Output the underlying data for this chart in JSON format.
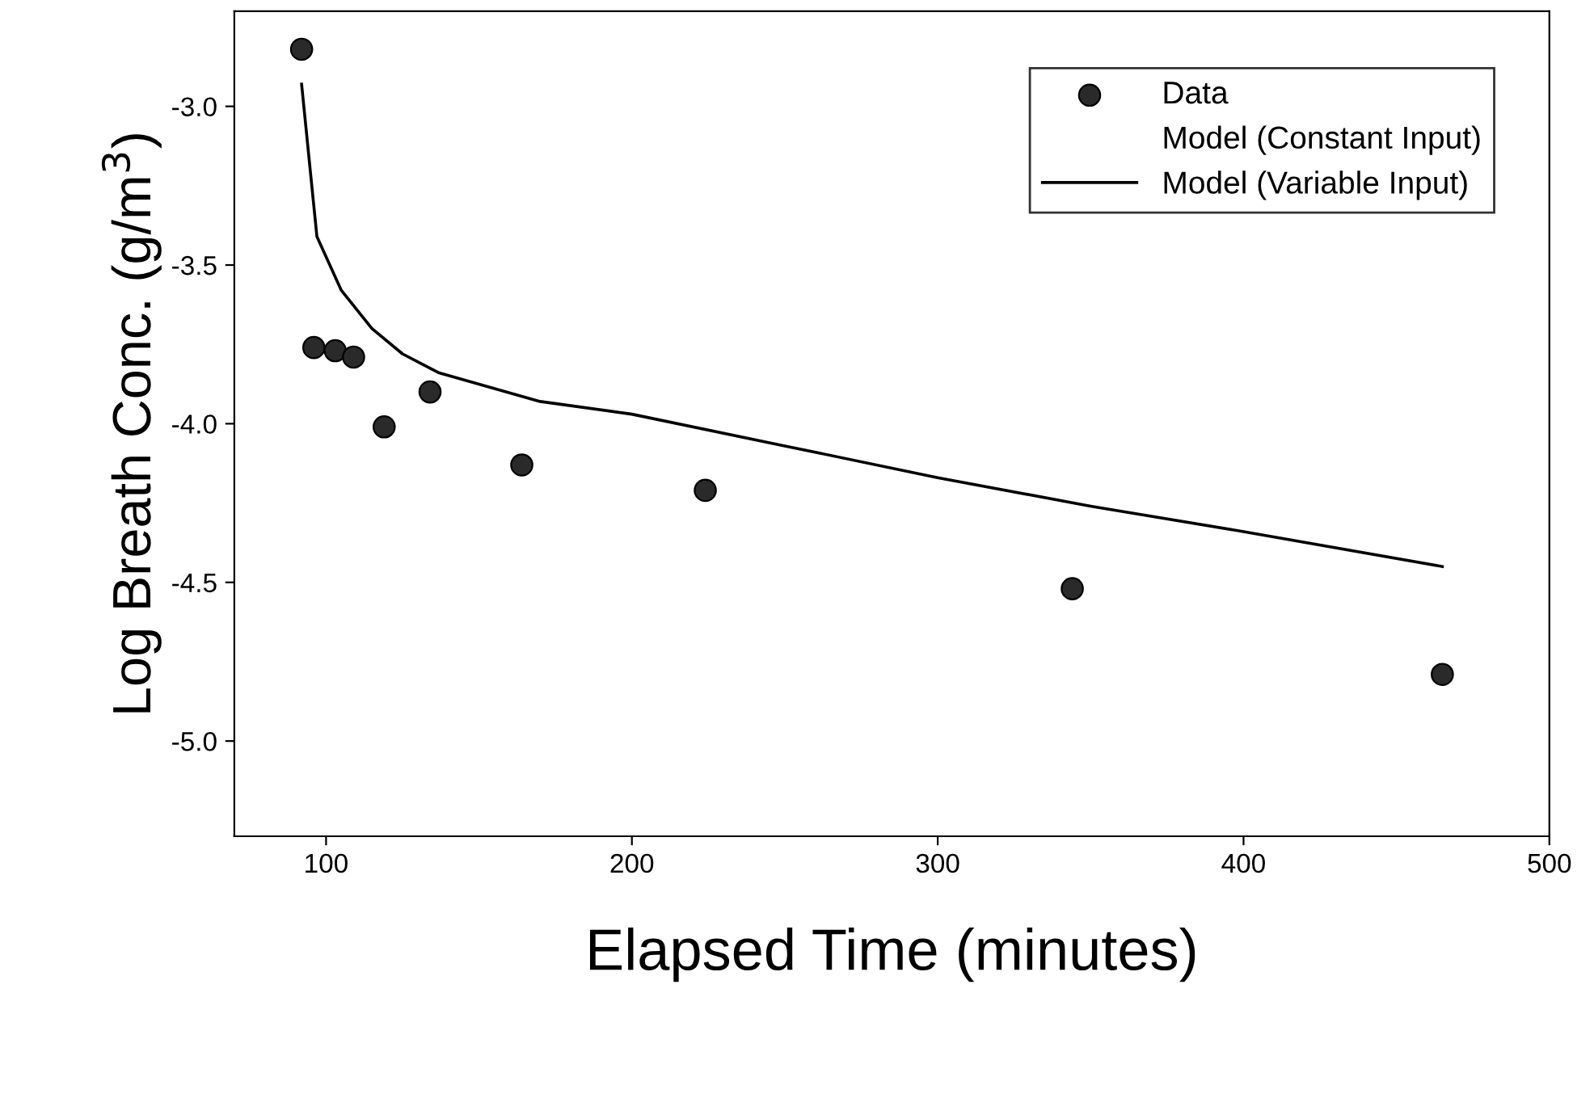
{
  "chart_data": {
    "type": "scatter",
    "xlabel": "Elapsed Time (minutes)",
    "ylabel": "Log Breath Conc. (g/m$^{3}$)",
    "xlim": [
      70,
      500
    ],
    "xticks": [
      100,
      200,
      300,
      400,
      500
    ],
    "ylim": [
      -5.3,
      -2.7
    ],
    "yticks": [
      {
        "value": -5,
        "label": "-5.0"
      },
      -4.5,
      {
        "value": -4,
        "label": "-4.0"
      },
      -3.5,
      {
        "value": -3,
        "label": "-3.0"
      }
    ],
    "grid": false,
    "legend": "top right",
    "series": [
      {
        "name": "Data",
        "marker": "circle",
        "color": "#2a2a2a",
        "x": [
          92,
          96,
          103,
          109,
          119,
          134,
          164,
          224,
          344,
          465
        ],
        "values": [
          -2.82,
          -3.76,
          -3.77,
          -3.79,
          -4.01,
          -3.9,
          -4.13,
          -4.21,
          -4.52,
          -4.79
        ]
      },
      {
        "name": "Model (Constant Input)",
        "type": "line",
        "line_style": "none",
        "color": "#000000"
      },
      {
        "name": "Model (Variable Input)",
        "type": "line",
        "line_style": "solid",
        "color": "#000000",
        "x": [
          92,
          97,
          105,
          115,
          125,
          137,
          170,
          200,
          250,
          300,
          350,
          400,
          465
        ],
        "values": [
          -2.93,
          -3.41,
          -3.58,
          -3.7,
          -3.78,
          -3.84,
          -3.93,
          -3.97,
          -4.07,
          -4.17,
          -4.26,
          -4.34,
          -4.45
        ]
      }
    ]
  }
}
